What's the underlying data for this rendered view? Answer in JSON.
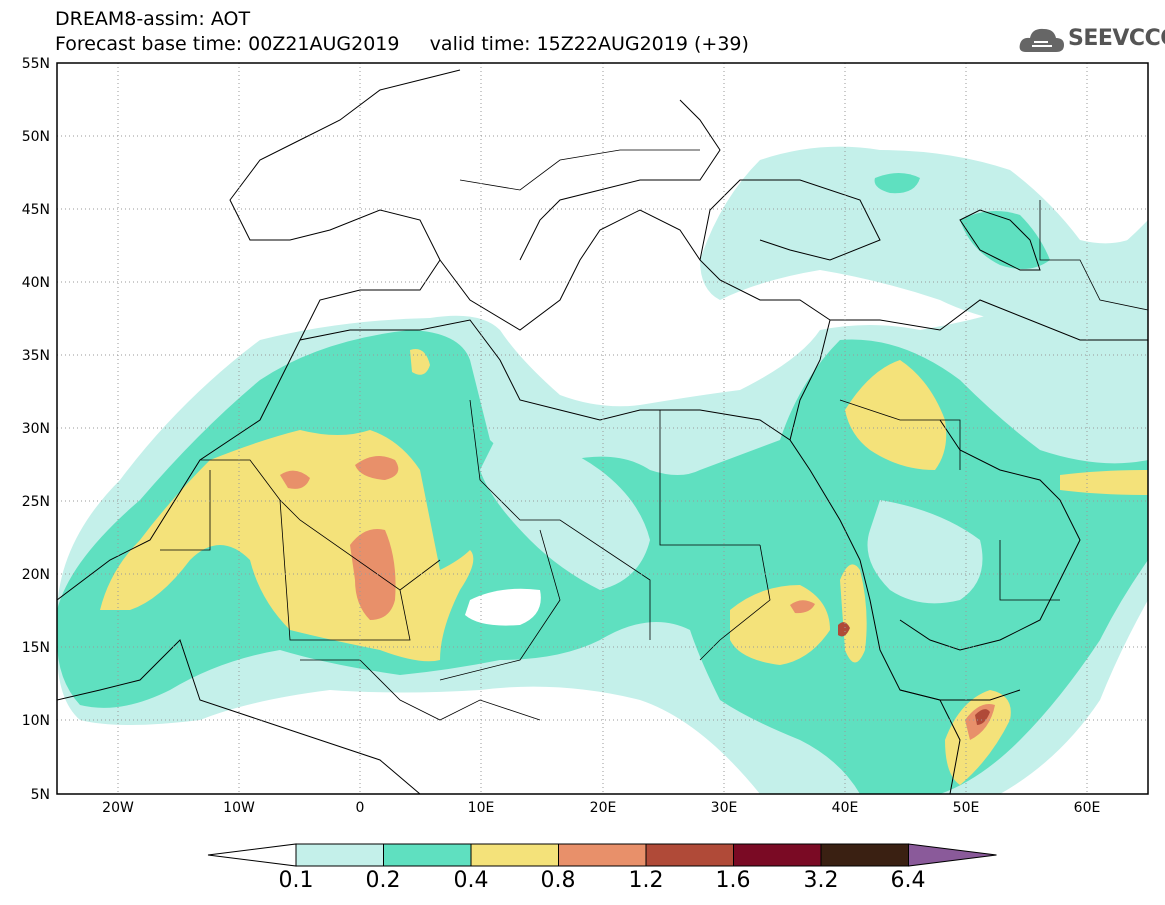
{
  "title": {
    "line1": "DREAM8-assim: AOT",
    "line2": "Forecast base time: 00Z21AUG2019     valid time: 15Z22AUG2019 (+39)"
  },
  "logo": {
    "text": "SEEVCCC",
    "icon": "cloud-icon"
  },
  "map": {
    "lon_range": [
      -25,
      65
    ],
    "lat_range": [
      5,
      55
    ],
    "lat_labels": [
      "55N",
      "50N",
      "45N",
      "40N",
      "35N",
      "30N",
      "25N",
      "20N",
      "15N",
      "10N",
      "5N"
    ],
    "lon_labels": [
      "20W",
      "10W",
      "0",
      "10E",
      "20E",
      "30E",
      "40E",
      "50E",
      "60E"
    ],
    "grid": "dotted"
  },
  "colorbar": {
    "ticks": [
      "0.1",
      "0.2",
      "0.4",
      "0.8",
      "1.2",
      "1.6",
      "3.2",
      "6.4"
    ],
    "colors": [
      "#ffffff",
      "#c4f0ea",
      "#5fe0c0",
      "#f4e27a",
      "#e8906a",
      "#b04a38",
      "#7a0a24",
      "#3a2012",
      "#8a5a9a"
    ]
  }
}
